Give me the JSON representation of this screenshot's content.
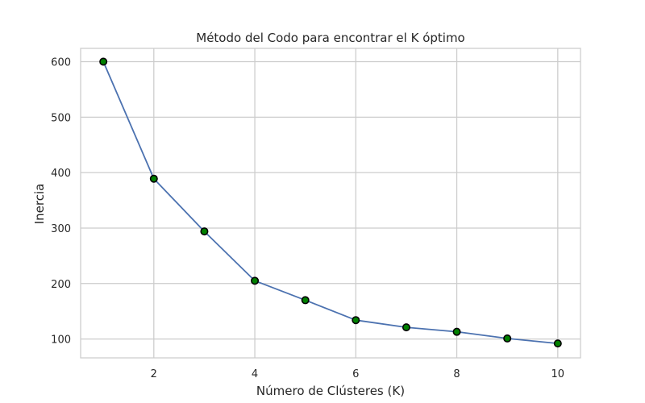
{
  "chart_data": {
    "type": "line",
    "title": "Método del Codo para encontrar el K óptimo",
    "xlabel": "Número de Clústeres (K)",
    "ylabel": "Inercia",
    "x": [
      1,
      2,
      3,
      4,
      5,
      6,
      7,
      8,
      9,
      10
    ],
    "series": [
      {
        "values": [
          600,
          389,
          294,
          205,
          170,
          134,
          121,
          113,
          101,
          92
        ]
      }
    ],
    "xlim": [
      0.55,
      10.45
    ],
    "ylim": [
      66,
      624
    ],
    "xticks": [
      "2",
      "4",
      "6",
      "8",
      "10"
    ],
    "yticks": [
      "100",
      "200",
      "300",
      "400",
      "500",
      "600"
    ],
    "grid": true,
    "colors": {
      "line": "#4c72b0",
      "marker_fill": "#008000",
      "marker_edge": "#000000",
      "grid": "#cccccc",
      "frame": "#cccccc"
    }
  }
}
